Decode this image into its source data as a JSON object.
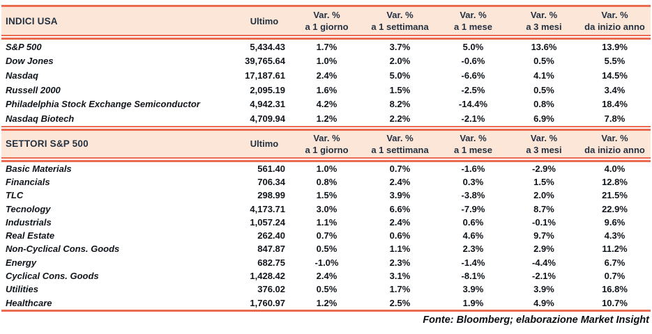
{
  "colors": {
    "accent_line": "#EC6A4F",
    "header_band_bg": "#FBE6D7",
    "header_text": "#243142",
    "body_text": "#10151b"
  },
  "columns": {
    "ultimo_label": "Ultimo",
    "var_label": "Var. %",
    "periods": [
      "a 1 giorno",
      "a 1 settimana",
      "a 1 mese",
      "a 3 mesi",
      "da inizio anno"
    ]
  },
  "sections": [
    {
      "title": "INDICI USA",
      "rows": [
        {
          "name": "S&P 500",
          "ultimo": "5,434.43",
          "d1": "1.7%",
          "w1": "3.7%",
          "m1": "5.0%",
          "m3": "13.6%",
          "ytd": "13.9%"
        },
        {
          "name": "Dow Jones",
          "ultimo": "39,765.64",
          "d1": "1.0%",
          "w1": "2.0%",
          "m1": "-0.6%",
          "m3": "0.5%",
          "ytd": "5.5%"
        },
        {
          "name": "Nasdaq",
          "ultimo": "17,187.61",
          "d1": "2.4%",
          "w1": "5.0%",
          "m1": "-6.6%",
          "m3": "4.1%",
          "ytd": "14.5%"
        },
        {
          "name": "Russell 2000",
          "ultimo": "2,095.19",
          "d1": "1.6%",
          "w1": "1.5%",
          "m1": "-2.5%",
          "m3": "0.5%",
          "ytd": "3.4%"
        },
        {
          "name": "Philadelphia Stock Exchange Semiconductor",
          "ultimo": "4,942.31",
          "d1": "4.2%",
          "w1": "8.2%",
          "m1": "-14.4%",
          "m3": "0.8%",
          "ytd": "18.4%"
        },
        {
          "name": "Nasdaq Biotech",
          "ultimo": "4,709.94",
          "d1": "1.2%",
          "w1": "2.2%",
          "m1": "-2.1%",
          "m3": "6.9%",
          "ytd": "7.8%"
        }
      ]
    },
    {
      "title": "SETTORI S&P 500",
      "rows": [
        {
          "name": "Basic Materials",
          "ultimo": "561.40",
          "d1": "1.0%",
          "w1": "0.7%",
          "m1": "-1.6%",
          "m3": "-2.9%",
          "ytd": "4.0%"
        },
        {
          "name": "Financials",
          "ultimo": "706.34",
          "d1": "0.8%",
          "w1": "2.4%",
          "m1": "0.3%",
          "m3": "1.5%",
          "ytd": "12.8%"
        },
        {
          "name": "TLC",
          "ultimo": "298.99",
          "d1": "1.5%",
          "w1": "3.9%",
          "m1": "-3.8%",
          "m3": "2.0%",
          "ytd": "21.5%"
        },
        {
          "name": "Tecnology",
          "ultimo": "4,173.71",
          "d1": "3.0%",
          "w1": "6.6%",
          "m1": "-7.9%",
          "m3": "8.7%",
          "ytd": "22.9%"
        },
        {
          "name": "Industrials",
          "ultimo": "1,057.24",
          "d1": "1.1%",
          "w1": "2.4%",
          "m1": "0.6%",
          "m3": "-0.1%",
          "ytd": "9.6%"
        },
        {
          "name": "Real Estate",
          "ultimo": "262.40",
          "d1": "0.7%",
          "w1": "0.6%",
          "m1": "4.6%",
          "m3": "9.7%",
          "ytd": "4.3%"
        },
        {
          "name": "Non-Cyclical Cons. Goods",
          "ultimo": "847.87",
          "d1": "0.5%",
          "w1": "1.1%",
          "m1": "2.3%",
          "m3": "2.9%",
          "ytd": "11.2%"
        },
        {
          "name": "Energy",
          "ultimo": "682.75",
          "d1": "-1.0%",
          "w1": "2.3%",
          "m1": "-1.4%",
          "m3": "-4.4%",
          "ytd": "6.7%"
        },
        {
          "name": "Cyclical Cons. Goods",
          "ultimo": "1,428.42",
          "d1": "2.4%",
          "w1": "3.1%",
          "m1": "-8.1%",
          "m3": "-2.1%",
          "ytd": "0.7%"
        },
        {
          "name": "Utilities",
          "ultimo": "376.02",
          "d1": "0.5%",
          "w1": "1.7%",
          "m1": "3.9%",
          "m3": "3.9%",
          "ytd": "16.8%"
        },
        {
          "name": "Healthcare",
          "ultimo": "1,760.97",
          "d1": "1.2%",
          "w1": "2.5%",
          "m1": "1.9%",
          "m3": "4.9%",
          "ytd": "10.7%"
        }
      ]
    }
  ],
  "footer": {
    "source": "Fonte: Bloomberg; elaborazione Market Insight"
  }
}
